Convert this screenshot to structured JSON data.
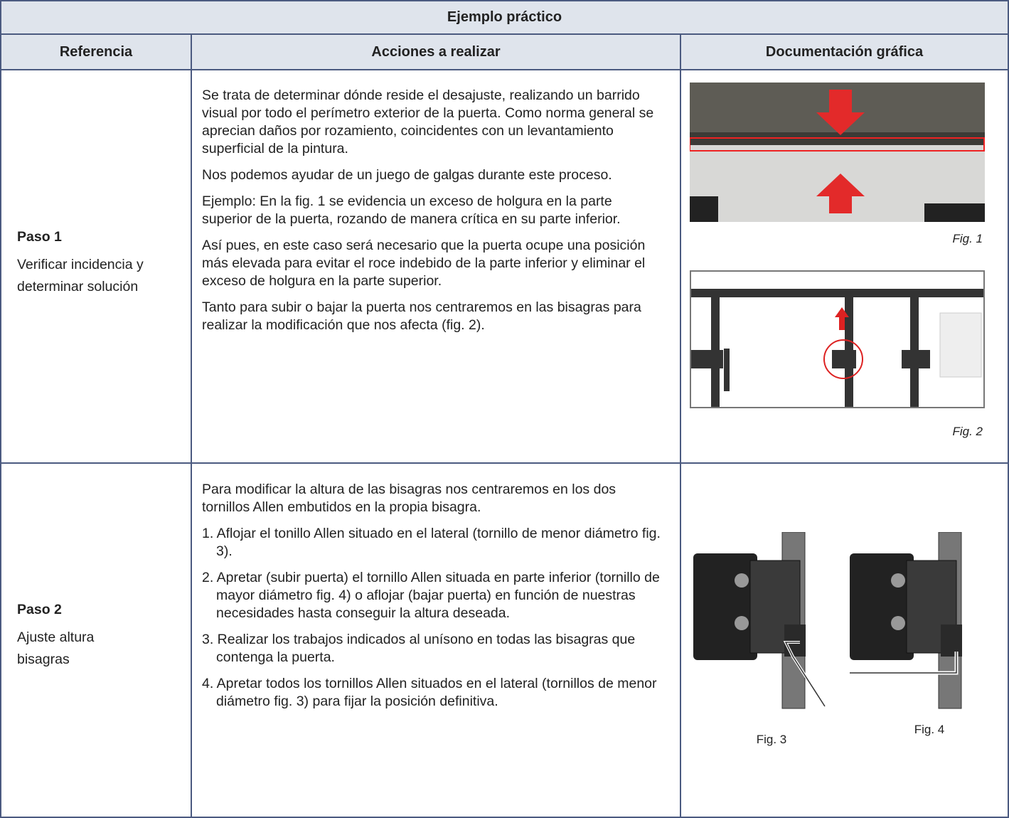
{
  "table": {
    "title": "Ejemplo práctico",
    "headers": [
      "Referencia",
      "Acciones a realizar",
      "Documentación gráfica"
    ],
    "rows": [
      {
        "step": "Paso 1",
        "description": "Verificar incidencia y determinar solución",
        "paragraphs": [
          "Se trata de determinar dónde reside el desajuste, realizando un barrido visual por todo el perímetro exterior de la puerta. Como norma general se aprecian daños por rozamiento, coincidentes con un levantamiento superficial de la pintura.",
          "Nos podemos ayudar de un juego de galgas durante este proceso.",
          "Ejemplo: En la fig. 1 se evidencia un exceso de holgura en la parte superior de la puerta, rozando de manera crítica en su parte inferior.",
          "Así pues, en este caso será necesario que la puerta ocupe una posición más elevada para evitar el roce indebido de la parte inferior y eliminar el exceso de holgura en la parte superior.",
          "Tanto para subir o bajar la puerta nos centraremos en las bisagras para realizar la modificación que nos afecta (fig. 2)."
        ],
        "figures": [
          "Fig. 1",
          "Fig. 2"
        ]
      },
      {
        "step": "Paso 2",
        "description": "Ajuste altura bisagras",
        "paragraphs": [
          "Para modificar la altura de las bisagras nos centraremos en los dos tornillos Allen embutidos en la propia bisagra.",
          "1. Aflojar el tonillo Allen situado en el lateral (tornillo de menor diámetro fig. 3).",
          "2. Apretar (subir puerta) el tornillo Allen situada en parte inferior (tornillo de mayor diámetro fig. 4) o aflojar (bajar puerta) en función de nuestras necesidades hasta conseguir la altura deseada.",
          "3. Realizar los trabajos indicados al unísono en todas las bisagras que contenga la puerta.",
          "4. Apretar todos los tornillos Allen situados en el lateral (tornillos de menor diámetro fig. 3) para fijar la posición definitiva."
        ],
        "figures": [
          "Fig. 3",
          "Fig. 4"
        ]
      }
    ]
  }
}
